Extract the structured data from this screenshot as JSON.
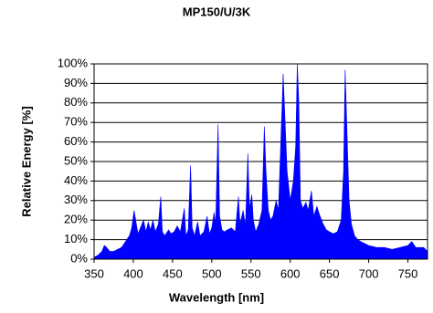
{
  "chart_data": {
    "type": "area",
    "title": "MP150/U/3K",
    "x_label": "Wavelength [nm]",
    "y_label": "Relative Energy [%]",
    "color": "#0000ff",
    "grid": true,
    "xlim": [
      350,
      775
    ],
    "xticks": [
      350,
      400,
      450,
      500,
      550,
      600,
      650,
      700,
      750
    ],
    "ylim": [
      0,
      100
    ],
    "yticks": [
      {
        "value": 0,
        "label": "0%"
      },
      {
        "value": 10,
        "label": "10%"
      },
      {
        "value": 20,
        "label": "20%"
      },
      {
        "value": 30,
        "label": "30%"
      },
      {
        "value": 40,
        "label": "40%"
      },
      {
        "value": 50,
        "label": "50%"
      },
      {
        "value": 60,
        "label": "60%"
      },
      {
        "value": 70,
        "label": "70%"
      },
      {
        "value": 80,
        "label": "80%"
      },
      {
        "value": 90,
        "label": "90%"
      },
      {
        "value": 100,
        "label": "100%"
      }
    ],
    "x": [
      350,
      355,
      360,
      363,
      366,
      370,
      375,
      380,
      385,
      390,
      395,
      398,
      401,
      403,
      406,
      410,
      413,
      416,
      419,
      422,
      425,
      428,
      432,
      435,
      437,
      440,
      445,
      448,
      452,
      456,
      460,
      465,
      467,
      470,
      473,
      475,
      478,
      482,
      485,
      490,
      494,
      497,
      500,
      503,
      505,
      508,
      510,
      513,
      516,
      520,
      525,
      530,
      534,
      536,
      540,
      543,
      546,
      548,
      551,
      553,
      556,
      560,
      564,
      567,
      569,
      572,
      575,
      578,
      582,
      585,
      588,
      591,
      593,
      596,
      600,
      604,
      607,
      609,
      611,
      613,
      616,
      620,
      623,
      627,
      630,
      634,
      638,
      642,
      646,
      650,
      655,
      660,
      665,
      668,
      670,
      672,
      675,
      678,
      682,
      686,
      690,
      695,
      700,
      710,
      720,
      730,
      740,
      750,
      755,
      760,
      770,
      775
    ],
    "values": [
      1,
      2,
      4,
      7,
      6,
      4,
      4,
      5,
      6,
      9,
      12,
      16,
      25,
      20,
      13,
      17,
      20,
      14,
      19,
      15,
      20,
      14,
      18,
      32,
      14,
      12,
      15,
      13,
      14,
      17,
      14,
      26,
      12,
      15,
      48,
      16,
      12,
      19,
      12,
      14,
      22,
      13,
      16,
      24,
      18,
      69,
      22,
      15,
      14,
      15,
      16,
      14,
      32,
      18,
      25,
      17,
      54,
      26,
      33,
      20,
      14,
      18,
      25,
      68,
      46,
      25,
      20,
      22,
      30,
      25,
      60,
      95,
      75,
      45,
      30,
      40,
      58,
      100,
      80,
      30,
      26,
      29,
      25,
      35,
      22,
      27,
      22,
      18,
      15,
      14,
      13,
      14,
      20,
      45,
      97,
      70,
      30,
      18,
      12,
      10,
      9,
      8,
      7,
      6,
      6,
      5,
      6,
      7,
      9,
      6,
      6,
      4
    ]
  }
}
